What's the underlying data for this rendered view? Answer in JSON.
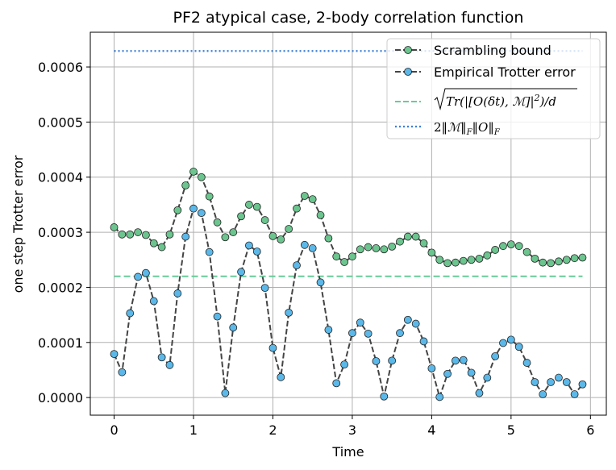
{
  "chart_data": {
    "type": "line",
    "title": "PF2 atypical case, 2-body correlation function",
    "xlabel": "Time",
    "ylabel": "one step Trotter error",
    "xlim": [
      -0.3,
      6.2
    ],
    "ylim": [
      -3.2e-05,
      0.000663
    ],
    "x_ticks": [
      0,
      1,
      2,
      3,
      4,
      5,
      6
    ],
    "y_ticks": [
      0.0,
      0.0001,
      0.0002,
      0.0003,
      0.0004,
      0.0005,
      0.0006
    ],
    "x_tick_labels": [
      "0",
      "1",
      "2",
      "3",
      "4",
      "5",
      "6"
    ],
    "y_tick_labels": [
      "0.0000",
      "0.0001",
      "0.0002",
      "0.0003",
      "0.0004",
      "0.0005",
      "0.0006"
    ],
    "grid": true,
    "legend_position": "top-right",
    "colors": {
      "scrambling_fill": "#6cc48e",
      "empirical_fill": "#5bb8e8",
      "line_dark": "#444444",
      "green_dash": "#66cc99",
      "blue_dot": "#3a7fd5"
    },
    "x": [
      0.0,
      0.1,
      0.2,
      0.3,
      0.4,
      0.5,
      0.6,
      0.7,
      0.8,
      0.9,
      1.0,
      1.1,
      1.2,
      1.3,
      1.4,
      1.5,
      1.6,
      1.7,
      1.8,
      1.9,
      2.0,
      2.1,
      2.2,
      2.3,
      2.4,
      2.5,
      2.6,
      2.7,
      2.8,
      2.9,
      3.0,
      3.1,
      3.2,
      3.3,
      3.4,
      3.5,
      3.6,
      3.7,
      3.8,
      3.9,
      4.0,
      4.1,
      4.2,
      4.3,
      4.4,
      4.5,
      4.6,
      4.7,
      4.8,
      4.9,
      5.0,
      5.1,
      5.2,
      5.3,
      5.4,
      5.5,
      5.6,
      5.7,
      5.8,
      5.9
    ],
    "series": [
      {
        "name": "Scrambling bound",
        "style": "dashed-markers",
        "values": [
          0.000309,
          0.000296,
          0.000296,
          0.0003,
          0.000295,
          0.00028,
          0.000273,
          0.000296,
          0.00034,
          0.000385,
          0.00041,
          0.0004,
          0.000365,
          0.000318,
          0.000291,
          0.0003,
          0.000329,
          0.00035,
          0.000346,
          0.000322,
          0.000293,
          0.000287,
          0.000306,
          0.000343,
          0.000366,
          0.00036,
          0.000331,
          0.000289,
          0.000256,
          0.000246,
          0.000256,
          0.000269,
          0.000273,
          0.000271,
          0.000269,
          0.000274,
          0.000283,
          0.000292,
          0.000292,
          0.00028,
          0.000263,
          0.00025,
          0.000244,
          0.000245,
          0.000248,
          0.00025,
          0.000252,
          0.000258,
          0.000268,
          0.000275,
          0.000278,
          0.000275,
          0.000264,
          0.000252,
          0.000245,
          0.000244,
          0.000247,
          0.00025,
          0.000253,
          0.000254
        ]
      },
      {
        "name": "Empirical Trotter error",
        "style": "dashed-markers",
        "values": [
          7.9e-05,
          4.6e-05,
          0.000153,
          0.000219,
          0.000226,
          0.000175,
          7.3e-05,
          5.9e-05,
          0.000189,
          0.000292,
          0.000343,
          0.000335,
          0.000264,
          0.000147,
          8e-06,
          0.000127,
          0.000228,
          0.000276,
          0.000265,
          0.000199,
          9e-05,
          3.7e-05,
          0.000154,
          0.00024,
          0.000277,
          0.000271,
          0.000209,
          0.000123,
          2.6e-05,
          6e-05,
          0.000117,
          0.000136,
          0.000116,
          6.6e-05,
          2e-06,
          6.7e-05,
          0.000117,
          0.000141,
          0.000134,
          0.000102,
          5.3e-05,
          1e-06,
          4.3e-05,
          6.7e-05,
          6.8e-05,
          4.5e-05,
          8e-06,
          3.6e-05,
          7.5e-05,
          9.9e-05,
          0.000105,
          9.2e-05,
          6.3e-05,
          2.8e-05,
          6e-06,
          2.8e-05,
          3.6e-05,
          2.8e-05,
          6e-06,
          2.4e-05
        ]
      },
      {
        "name": "sqrt(Tr(|[O(δt), M]|^2)/d)",
        "style": "dashed",
        "x_range": [
          0.0,
          5.9
        ],
        "value": 0.00022
      },
      {
        "name": "2‖M‖F‖O‖F",
        "style": "dotted",
        "x_range": [
          0.0,
          5.9
        ],
        "value": 0.000629
      }
    ],
    "legend": {
      "scrambling": "Scrambling bound",
      "empirical": "Empirical Trotter error",
      "sqrt_tr": "Tr(|[O(",
      "delta": "δ",
      "sqrt_t": "t",
      "sqrt_m": "ℳ",
      "sqrt_close": "]|",
      "sqrt_sup": "2",
      "sqrt_d": ")/d",
      "norm_two": "2",
      "norm_m": "ℳ",
      "norm_o": "O",
      "norm_sub": "F"
    }
  }
}
